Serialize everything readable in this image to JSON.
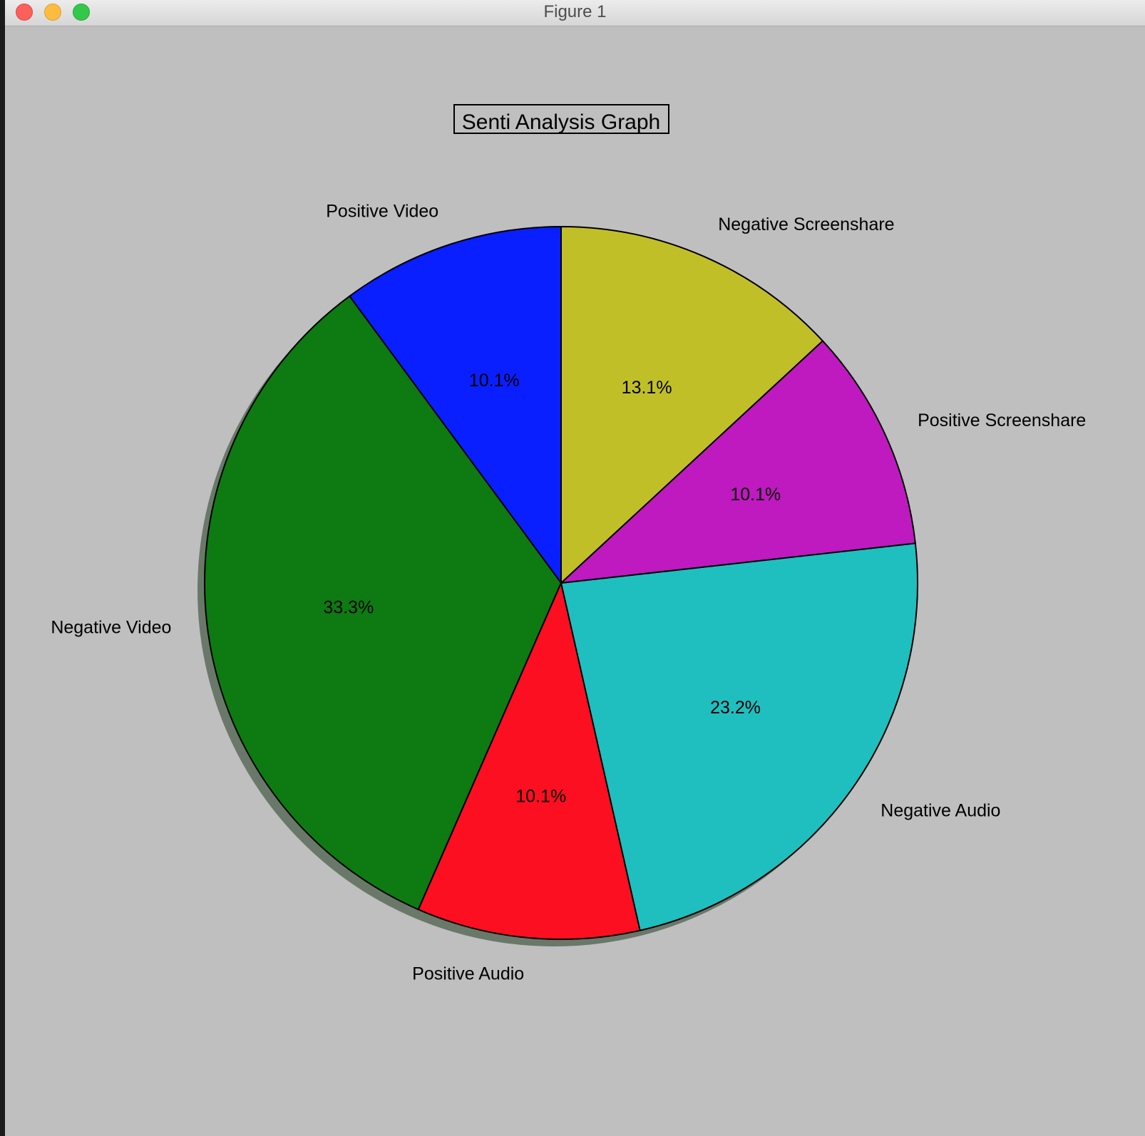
{
  "window": {
    "title": "Figure 1"
  },
  "colors": {
    "window_bg": "#bfbfbf",
    "slice_edge": "#000000",
    "shadow": "#5a6b5a"
  },
  "chart_data": {
    "type": "pie",
    "title": "Senti Analysis Graph",
    "title_boxed": true,
    "start_angle_deg": 90,
    "direction": "counterclockwise",
    "shadow": true,
    "slices": [
      {
        "label": "Positive Video",
        "value": 10.1,
        "pct_label": "10.1%",
        "color": "#0a1fff"
      },
      {
        "label": "Negative Video",
        "value": 33.3,
        "pct_label": "33.3%",
        "color": "#0e7a12"
      },
      {
        "label": "Positive Audio",
        "value": 10.1,
        "pct_label": "10.1%",
        "color": "#fb0f20"
      },
      {
        "label": "Negative Audio",
        "value": 23.2,
        "pct_label": "23.2%",
        "color": "#1fbfbf"
      },
      {
        "label": "Positive Screenshare",
        "value": 10.1,
        "pct_label": "10.1%",
        "color": "#bf1abf"
      },
      {
        "label": "Negative Screenshare",
        "value": 13.1,
        "pct_label": "13.1%",
        "color": "#c1bf27"
      }
    ]
  }
}
